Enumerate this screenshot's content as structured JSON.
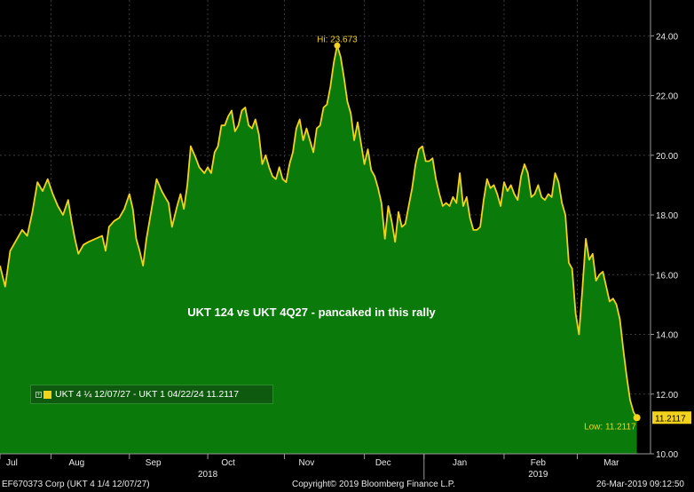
{
  "chart_data": {
    "type": "area",
    "annotation": "UKT 124 vs UKT 4Q27 - pancaked in this rally",
    "series": [
      {
        "name": "UKT 4 ¼ 12/07/27 - UKT 1 04/22/24",
        "last_value_label": "11.2117",
        "color": "#f2d21b",
        "fill": "#0a7a0a",
        "points": [
          [
            0,
            16.3
          ],
          [
            3,
            15.6
          ],
          [
            6,
            16.8
          ],
          [
            10,
            17.2
          ],
          [
            13,
            17.5
          ],
          [
            16,
            17.3
          ],
          [
            19,
            18.1
          ],
          [
            22,
            19.1
          ],
          [
            25,
            18.8
          ],
          [
            28,
            19.2
          ],
          [
            31,
            18.7
          ],
          [
            34,
            18.3
          ],
          [
            37,
            18.0
          ],
          [
            40,
            18.5
          ],
          [
            42,
            17.8
          ],
          [
            44,
            17.2
          ],
          [
            46,
            16.7
          ],
          [
            49,
            17.0
          ],
          [
            52,
            17.1
          ],
          [
            56,
            17.2
          ],
          [
            60,
            17.3
          ],
          [
            62,
            16.8
          ],
          [
            64,
            17.6
          ],
          [
            67,
            17.8
          ],
          [
            70,
            17.9
          ],
          [
            73,
            18.2
          ],
          [
            76,
            18.7
          ],
          [
            78,
            18.2
          ],
          [
            80,
            17.2
          ],
          [
            82,
            16.8
          ],
          [
            84,
            16.3
          ],
          [
            86,
            17.2
          ],
          [
            89,
            18.2
          ],
          [
            92,
            19.2
          ],
          [
            95,
            18.8
          ],
          [
            97,
            18.6
          ],
          [
            99,
            18.4
          ],
          [
            101,
            17.6
          ],
          [
            104,
            18.3
          ],
          [
            106,
            18.7
          ],
          [
            108,
            18.2
          ],
          [
            110,
            19.0
          ],
          [
            112,
            20.3
          ],
          [
            115,
            19.9
          ],
          [
            117,
            19.6
          ],
          [
            120,
            19.4
          ],
          [
            122,
            19.6
          ],
          [
            124,
            19.4
          ],
          [
            126,
            20.1
          ],
          [
            128,
            20.3
          ],
          [
            130,
            21.0
          ],
          [
            132,
            21.0
          ],
          [
            134,
            21.3
          ],
          [
            136,
            21.5
          ],
          [
            138,
            20.8
          ],
          [
            140,
            21.0
          ],
          [
            142,
            21.5
          ],
          [
            144,
            21.6
          ],
          [
            146,
            21.0
          ],
          [
            148,
            20.9
          ],
          [
            150,
            21.2
          ],
          [
            152,
            20.7
          ],
          [
            154,
            19.7
          ],
          [
            156,
            20.0
          ],
          [
            158,
            19.6
          ],
          [
            160,
            19.3
          ],
          [
            162,
            19.2
          ],
          [
            164,
            19.6
          ],
          [
            166,
            19.2
          ],
          [
            168,
            19.1
          ],
          [
            170,
            19.7
          ],
          [
            172,
            20.1
          ],
          [
            174,
            20.9
          ],
          [
            176,
            21.2
          ],
          [
            178,
            20.5
          ],
          [
            180,
            20.9
          ],
          [
            182,
            20.5
          ],
          [
            184,
            20.1
          ],
          [
            186,
            20.9
          ],
          [
            188,
            21.0
          ],
          [
            190,
            21.6
          ],
          [
            192,
            21.7
          ],
          [
            194,
            22.3
          ],
          [
            196,
            23.1
          ],
          [
            198,
            23.673
          ],
          [
            200,
            23.3
          ],
          [
            202,
            22.6
          ],
          [
            204,
            21.8
          ],
          [
            206,
            21.4
          ],
          [
            208,
            20.5
          ],
          [
            210,
            21.1
          ],
          [
            212,
            20.4
          ],
          [
            214,
            19.7
          ],
          [
            216,
            20.2
          ],
          [
            218,
            19.5
          ],
          [
            220,
            19.3
          ],
          [
            222,
            18.9
          ],
          [
            224,
            18.4
          ],
          [
            226,
            17.2
          ],
          [
            228,
            18.3
          ],
          [
            230,
            17.8
          ],
          [
            232,
            17.1
          ],
          [
            234,
            18.1
          ],
          [
            236,
            17.6
          ],
          [
            238,
            17.7
          ],
          [
            240,
            18.3
          ],
          [
            242,
            18.9
          ],
          [
            244,
            19.7
          ],
          [
            246,
            20.2
          ],
          [
            248,
            20.3
          ],
          [
            250,
            19.8
          ],
          [
            252,
            19.8
          ],
          [
            254,
            19.9
          ],
          [
            256,
            19.2
          ],
          [
            258,
            18.7
          ],
          [
            260,
            18.3
          ],
          [
            262,
            18.4
          ],
          [
            264,
            18.3
          ],
          [
            266,
            18.6
          ],
          [
            268,
            18.4
          ],
          [
            270,
            19.4
          ],
          [
            272,
            18.3
          ],
          [
            274,
            18.6
          ],
          [
            276,
            17.9
          ],
          [
            278,
            17.5
          ],
          [
            280,
            17.5
          ],
          [
            282,
            17.6
          ],
          [
            284,
            18.5
          ],
          [
            286,
            19.2
          ],
          [
            288,
            18.9
          ],
          [
            290,
            19.0
          ],
          [
            292,
            18.7
          ],
          [
            294,
            18.3
          ],
          [
            296,
            19.1
          ],
          [
            298,
            18.8
          ],
          [
            300,
            19.0
          ],
          [
            302,
            18.7
          ],
          [
            304,
            18.5
          ],
          [
            306,
            19.3
          ],
          [
            308,
            19.7
          ],
          [
            310,
            19.4
          ],
          [
            312,
            18.6
          ],
          [
            314,
            18.7
          ],
          [
            316,
            19.0
          ],
          [
            318,
            18.6
          ],
          [
            320,
            18.5
          ],
          [
            322,
            18.7
          ],
          [
            324,
            18.6
          ],
          [
            326,
            19.4
          ],
          [
            328,
            19.1
          ],
          [
            330,
            18.4
          ],
          [
            332,
            18.0
          ],
          [
            334,
            16.4
          ],
          [
            336,
            16.2
          ],
          [
            338,
            14.7
          ],
          [
            340,
            14.0
          ],
          [
            342,
            15.5
          ],
          [
            344,
            17.2
          ],
          [
            346,
            16.5
          ],
          [
            348,
            16.7
          ],
          [
            350,
            15.8
          ],
          [
            352,
            16.0
          ],
          [
            354,
            16.1
          ],
          [
            356,
            15.6
          ],
          [
            358,
            15.1
          ],
          [
            360,
            15.2
          ],
          [
            362,
            15.0
          ],
          [
            364,
            14.5
          ],
          [
            366,
            13.5
          ],
          [
            368,
            12.6
          ],
          [
            370,
            11.8
          ],
          [
            372,
            11.4
          ],
          [
            374,
            11.2117
          ]
        ]
      }
    ],
    "x_range": [
      0,
      382
    ],
    "ylim": [
      10.0,
      25.2
    ],
    "y_ticks": [
      "10.00",
      "12.00",
      "14.00",
      "16.00",
      "18.00",
      "20.00",
      "22.00",
      "24.00"
    ],
    "x_ticks": [
      {
        "label": "Jul",
        "x": 7
      },
      {
        "label": "Aug",
        "x": 45
      },
      {
        "label": "Sep",
        "x": 90
      },
      {
        "label": "Oct",
        "x": 134
      },
      {
        "label": "Nov",
        "x": 180
      },
      {
        "label": "Dec",
        "x": 225
      },
      {
        "label": "Jan",
        "x": 270
      },
      {
        "label": "Feb",
        "x": 316
      },
      {
        "label": "Mar",
        "x": 359
      }
    ],
    "x_separators": [
      0,
      30,
      76,
      122,
      167,
      214,
      249,
      296,
      339
    ],
    "year_labels": [
      {
        "label": "2018",
        "x": 122
      },
      {
        "label": "2019",
        "x": 316
      }
    ],
    "year_boundary_x": 249,
    "hi_label": "Hi: 23.673",
    "low_label": "Low: 11.2117",
    "legend": "top-left",
    "grid": true
  },
  "legend_box": {
    "text": "UKT 4 ¼ 12/07/27 - UKT 1 04/22/24 11.2117",
    "color": "#f2d21b"
  },
  "footer": {
    "left": "EF670373 Corp (UKT 4 1/4 12/07/27)",
    "center": "Copyright© 2019 Bloomberg Finance L.P.",
    "right": "26-Mar-2019 09:12:50"
  }
}
